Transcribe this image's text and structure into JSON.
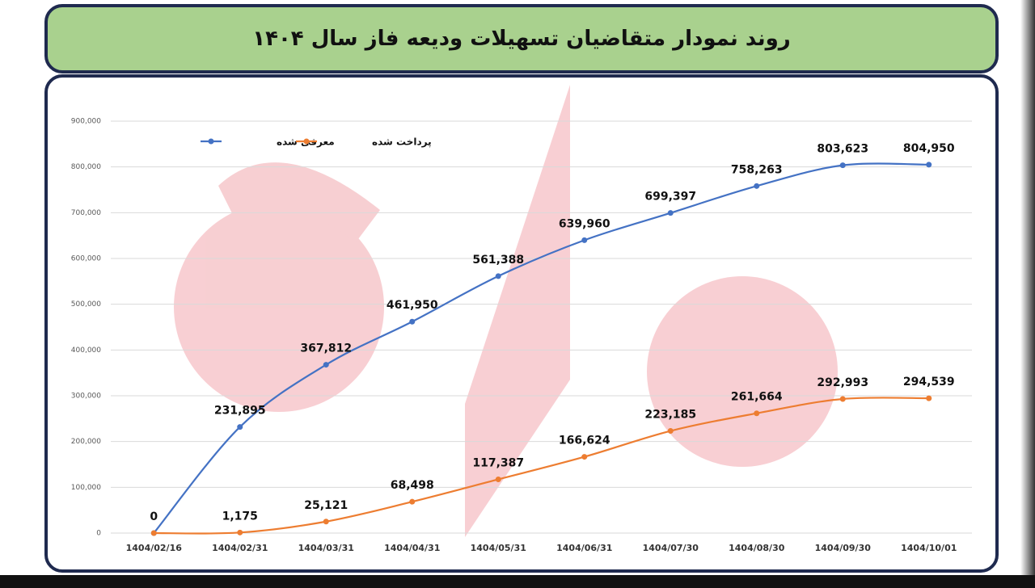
{
  "chart_data": {
    "type": "line",
    "title": "روند نمودار متقاضیان تسهیلات ودیعه فاز سال ۱۴۰۴",
    "categories": [
      "1404/02/16",
      "1404/02/31",
      "1404/03/31",
      "1404/04/31",
      "1404/05/31",
      "1404/06/31",
      "1404/07/30",
      "1404/08/30",
      "1404/09/30",
      "1404/10/01"
    ],
    "series": [
      {
        "name": "معرفی شده",
        "color": "#4472c4",
        "values": [
          0,
          231895,
          367812,
          461950,
          561388,
          639960,
          699397,
          758263,
          803623,
          804950
        ],
        "value_labels": [
          "0",
          "231,895",
          "367,812",
          "461,950",
          "561,388",
          "639,960",
          "699,397",
          "758,263",
          "803,623",
          "804,950"
        ]
      },
      {
        "name": "پرداخت شده",
        "color": "#ed7d31",
        "values": [
          0,
          1175,
          25121,
          68498,
          117387,
          166624,
          223185,
          261664,
          292993,
          294539
        ],
        "value_labels": [
          null,
          "1,175",
          "25,121",
          "68,498",
          "117,387",
          "166,624",
          "223,185",
          "261,664",
          "292,993",
          "294,539"
        ]
      }
    ],
    "ylim": [
      0,
      900000
    ],
    "yticks": [
      0,
      {
        "value": 100000,
        "label": "100,000"
      },
      {
        "value": 200000,
        "label": "200,000"
      },
      {
        "value": 300000,
        "label": "300,000"
      },
      {
        "value": 400000,
        "label": "400,000"
      },
      {
        "value": 500000,
        "label": "500,000"
      },
      {
        "value": 600000,
        "label": "600,000"
      },
      {
        "value": 700000,
        "label": "700,000"
      },
      {
        "value": 800000,
        "label": "800,000"
      },
      {
        "value": 900000,
        "label": "900,000"
      }
    ],
    "grid": true,
    "legend": "top-left"
  }
}
